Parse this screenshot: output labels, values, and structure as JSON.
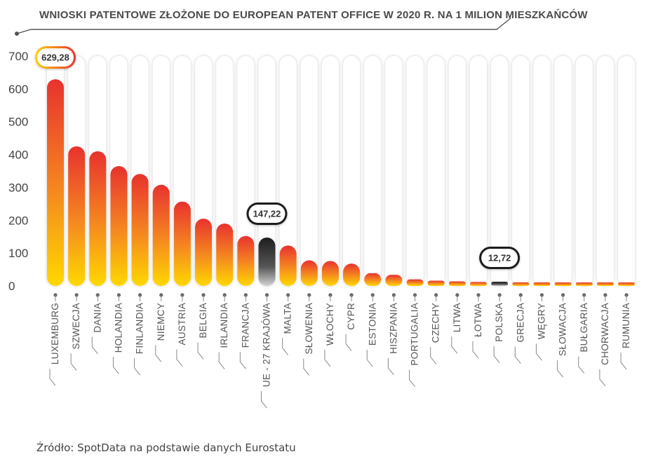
{
  "chart_data": {
    "type": "bar",
    "title": "WNIOSKI PATENTOWE ZŁOŻONE DO EUROPEAN PATENT OFFICE W 2020 R. NA 1 MILION MIESZKAŃCÓW",
    "categories": [
      "LUXEMBURG",
      "SZWECJA",
      "DANIA",
      "HOLANDIA",
      "FINLANDIA",
      "NIEMCY",
      "AUSTRIA",
      "BELGIA",
      "IRLANDIA",
      "FRANCJA",
      "UE - 27 KRAJÓWA",
      "MALTA",
      "SŁOWENIA",
      "WŁOCHY",
      "CYPR",
      "ESTONIA",
      "HISZPANIA",
      "PORTUGALIA",
      "CZECHY",
      "LITWA",
      "ŁOTWA",
      "POLSKA",
      "GRECJA",
      "WĘGRY",
      "SŁOWACJA",
      "BUŁGARIA",
      "CHORWACJA",
      "RUMUNIA"
    ],
    "values": [
      629.28,
      425,
      410,
      365,
      341,
      308,
      257,
      205,
      190,
      152,
      147.22,
      123,
      78,
      76,
      68,
      39,
      34,
      20,
      16,
      14,
      12,
      12.72,
      11,
      10,
      8,
      7,
      5,
      4
    ],
    "yticks": [
      "0",
      "100",
      "200",
      "300",
      "400",
      "500",
      "600",
      "700"
    ],
    "ylim": [
      0,
      700
    ],
    "annotations": [
      {
        "category": "LUXEMBURG",
        "label": "629,28"
      },
      {
        "category": "UE - 27 KRAJÓWA",
        "label": "147,22"
      },
      {
        "category": "POLSKA",
        "label": "12,72"
      }
    ],
    "highlight": {
      "UE - 27 KRAJÓWA": "dark",
      "POLSKA": "dark"
    },
    "colors": {
      "bar_top": "#e8322f",
      "bar_bottom": "#ffd200",
      "dark_top": "#1e1e1e",
      "dark_bottom": "#c8c8c8",
      "track": "#ffffff"
    },
    "grid": false
  },
  "source": "Źródło: SpotData na podstawie danych Eurostatu"
}
